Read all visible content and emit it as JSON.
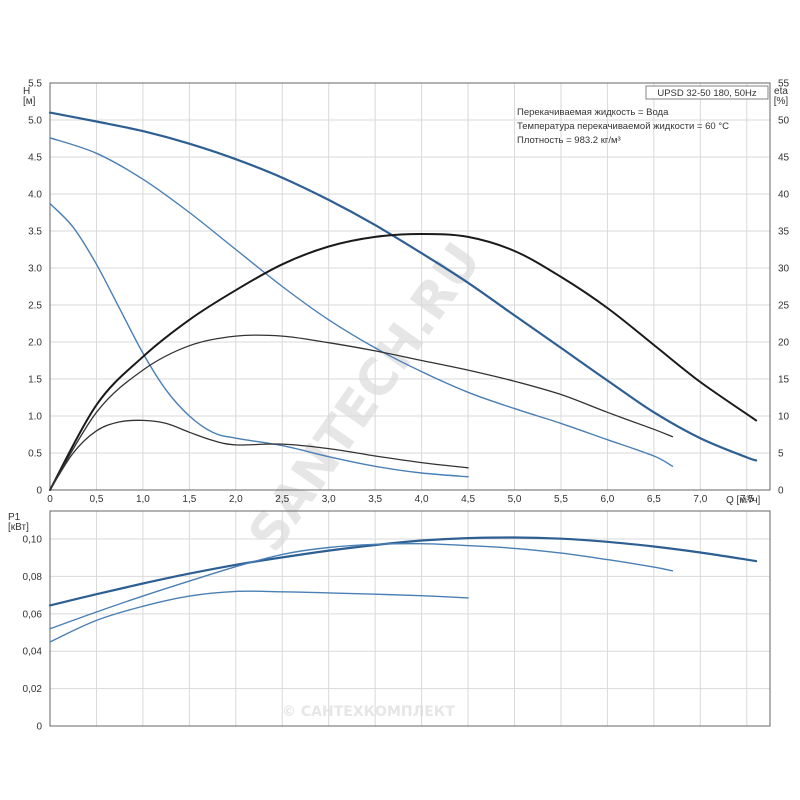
{
  "info_box": {
    "model": "UPSD 32-50 180, 50Hz",
    "liquid": "Перекачиваемая жидкость = Вода",
    "temperature": "Температура перекачиваемой жидкости = 60 °C",
    "density": "Плотность = 983.2 кг/м³"
  },
  "watermarks": {
    "diagonal": "SANTECH.RU",
    "bottom": "© САНТЕХКОМПЛЕКТ"
  },
  "chart_data": [
    {
      "type": "line",
      "xlabel": "Q [м³/ч]",
      "ylabel": "H\n[м]",
      "y2label": "eta\n[%]",
      "xlim": [
        0,
        7.75
      ],
      "ylim": [
        0,
        5.5
      ],
      "y2lim": [
        0,
        55
      ],
      "grid": true,
      "x_ticks": [
        "0",
        "0,5",
        "1,0",
        "1,5",
        "2,0",
        "2,5",
        "3,0",
        "3,5",
        "4,0",
        "4,5",
        "5,0",
        "5,5",
        "6,0",
        "6,5",
        "7,0",
        "7,5"
      ],
      "y_ticks": [
        "0",
        "0.5",
        "1.0",
        "1.5",
        "2.0",
        "2.5",
        "3.0",
        "3.5",
        "4.0",
        "4.5",
        "5.0",
        "5.5"
      ],
      "y2_ticks": [
        "0",
        "5",
        "10",
        "15",
        "20",
        "25",
        "30",
        "35",
        "40",
        "45",
        "50",
        "55"
      ],
      "series": [
        {
          "kind": "head",
          "axis": "left",
          "color": "#2d5f93",
          "width": 2.2,
          "x": [
            0,
            0.5,
            1,
            1.5,
            2,
            2.5,
            3,
            3.5,
            4,
            4.5,
            5,
            5.5,
            6,
            6.5,
            7,
            7.5,
            7.6
          ],
          "y": [
            5.1,
            4.98,
            4.85,
            4.68,
            4.47,
            4.22,
            3.92,
            3.58,
            3.2,
            2.8,
            2.36,
            1.92,
            1.48,
            1.05,
            0.7,
            0.44,
            0.4
          ]
        },
        {
          "kind": "head",
          "axis": "left",
          "color": "#4a7fb5",
          "width": 1.4,
          "x": [
            0,
            0.5,
            1,
            1.5,
            2,
            2.5,
            3,
            3.5,
            4,
            4.5,
            5,
            5.5,
            6,
            6.5,
            6.7
          ],
          "y": [
            4.76,
            4.55,
            4.2,
            3.75,
            3.25,
            2.75,
            2.3,
            1.92,
            1.6,
            1.32,
            1.1,
            0.9,
            0.68,
            0.46,
            0.32
          ]
        },
        {
          "kind": "head",
          "axis": "left",
          "color": "#4a7fb5",
          "width": 1.4,
          "x": [
            0,
            0.25,
            0.5,
            0.75,
            1,
            1.25,
            1.5,
            1.75,
            2,
            2.5,
            3,
            3.5,
            4,
            4.5
          ],
          "y": [
            3.87,
            3.55,
            3.05,
            2.45,
            1.85,
            1.35,
            1.0,
            0.78,
            0.7,
            0.6,
            0.45,
            0.32,
            0.23,
            0.18
          ]
        },
        {
          "kind": "efficiency",
          "axis": "right",
          "color": "#1a1a1a",
          "width": 2.0,
          "x": [
            0,
            0.5,
            1,
            1.5,
            2,
            2.5,
            3,
            3.5,
            4,
            4.5,
            5,
            5.5,
            6,
            6.5,
            7,
            7.6
          ],
          "y": [
            0,
            11.5,
            18,
            23,
            27,
            30.5,
            32.9,
            34.2,
            34.6,
            34.2,
            32.3,
            28.8,
            24.6,
            19.6,
            14.6,
            9.4
          ]
        },
        {
          "kind": "efficiency",
          "axis": "right",
          "color": "#333333",
          "width": 1.3,
          "x": [
            0,
            0.5,
            1,
            1.5,
            2,
            2.5,
            3,
            3.5,
            4,
            4.5,
            5,
            5.5,
            6,
            6.5,
            6.7
          ],
          "y": [
            0,
            10.5,
            16.2,
            19.5,
            20.8,
            20.8,
            19.9,
            18.8,
            17.5,
            16.2,
            14.7,
            12.9,
            10.5,
            8.2,
            7.2
          ]
        },
        {
          "kind": "efficiency",
          "axis": "right",
          "color": "#333333",
          "width": 1.3,
          "x": [
            0,
            0.25,
            0.5,
            0.75,
            1,
            1.25,
            1.5,
            1.75,
            2,
            2.5,
            3,
            3.5,
            4,
            4.5
          ],
          "y": [
            0,
            5,
            8,
            9.2,
            9.4,
            9,
            7.8,
            6.7,
            6.1,
            6.2,
            5.6,
            4.6,
            3.7,
            3.0
          ]
        }
      ]
    },
    {
      "type": "line",
      "xlabel": "",
      "ylabel": "P1\n[кВт]",
      "xlim": [
        0,
        7.75
      ],
      "ylim": [
        0,
        0.115
      ],
      "grid": true,
      "y_ticks": [
        "0",
        "0,02",
        "0,04",
        "0,06",
        "0,08",
        "0,10"
      ],
      "y_tick_values": [
        0,
        0.02,
        0.04,
        0.06,
        0.08,
        0.1
      ],
      "series": [
        {
          "kind": "power",
          "color": "#2d5f93",
          "width": 2.2,
          "x": [
            0,
            0.5,
            1,
            1.5,
            2,
            2.5,
            3,
            3.5,
            4,
            4.5,
            5,
            5.5,
            6,
            6.5,
            7,
            7.6
          ],
          "y": [
            0.0645,
            0.0705,
            0.0762,
            0.0815,
            0.0862,
            0.0902,
            0.0938,
            0.0968,
            0.0992,
            0.1005,
            0.1008,
            0.1002,
            0.0985,
            0.096,
            0.0928,
            0.0882
          ]
        },
        {
          "kind": "power",
          "color": "#4a7fb5",
          "width": 1.4,
          "x": [
            0,
            0.5,
            1,
            1.5,
            2,
            2.5,
            3,
            3.5,
            4,
            4.5,
            5,
            5.5,
            6,
            6.5,
            6.7
          ],
          "y": [
            0.052,
            0.061,
            0.0695,
            0.0775,
            0.0852,
            0.0918,
            0.0955,
            0.0972,
            0.0975,
            0.0965,
            0.095,
            0.0925,
            0.089,
            0.085,
            0.083
          ]
        },
        {
          "kind": "power",
          "color": "#4a7fb5",
          "width": 1.4,
          "x": [
            0,
            0.5,
            1,
            1.5,
            2,
            2.5,
            3,
            3.5,
            4,
            4.5
          ],
          "y": [
            0.045,
            0.0565,
            0.064,
            0.0695,
            0.072,
            0.0718,
            0.0712,
            0.0705,
            0.0697,
            0.0685
          ]
        }
      ]
    }
  ]
}
